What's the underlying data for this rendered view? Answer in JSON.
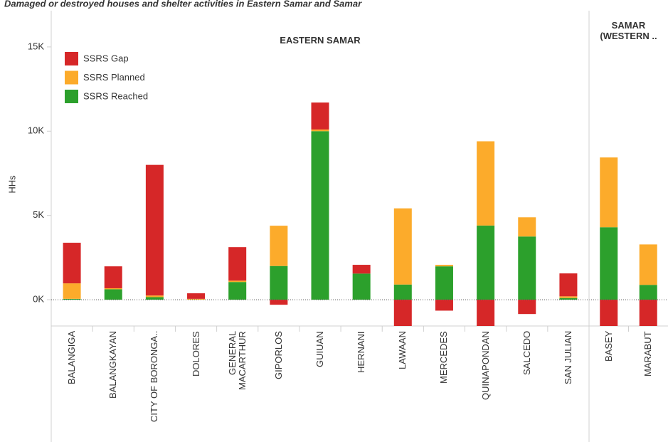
{
  "chart_data": {
    "type": "stacked_bar",
    "title": "Damaged or destroyed houses and shelter activities in Eastern Samar and Samar",
    "y_label": "HHs",
    "panels": [
      {
        "name": "EASTERN SAMAR",
        "categories": [
          "BALANGIGA",
          "BALANGKAYAN",
          "CITY OF BORONGA..",
          "DOLORES",
          "GENERAL MACARTHUR",
          "GIPORLOS",
          "GUIUAN",
          "HERNANI",
          "LAWAAN",
          "MERCEDES",
          "QUINAPONDAN",
          "SALCEDO",
          "SAN JULIAN"
        ]
      },
      {
        "name": "SAMAR (WESTERN ..",
        "categories": [
          "BASEY",
          "MARABUT"
        ]
      }
    ],
    "series": [
      {
        "name": "SSRS Gap",
        "color": "#d62728",
        "values": [
          2410,
          1300,
          7750,
          330,
          1990,
          -300,
          1600,
          520,
          -2500,
          -650,
          -2000,
          -850,
          1360,
          -2500,
          -2000
        ]
      },
      {
        "name": "SSRS Planned",
        "color": "#fcab2b",
        "values": [
          920,
          60,
          100,
          50,
          80,
          2390,
          100,
          0,
          4520,
          90,
          5000,
          1140,
          100,
          4140,
          2400
        ]
      },
      {
        "name": "SSRS Reached",
        "color": "#2ca02c",
        "values": [
          50,
          620,
          150,
          0,
          1050,
          2000,
          10000,
          1550,
          900,
          1980,
          4400,
          3750,
          100,
          4300,
          880
        ]
      }
    ],
    "ylim": [
      -1560,
      17150
    ],
    "yticks": [
      {
        "value": 0,
        "label": "0K"
      },
      {
        "value": 5000,
        "label": "5K"
      },
      {
        "value": 10000,
        "label": "10K"
      },
      {
        "value": 15000,
        "label": "15K"
      }
    ],
    "legend": "top-left"
  }
}
